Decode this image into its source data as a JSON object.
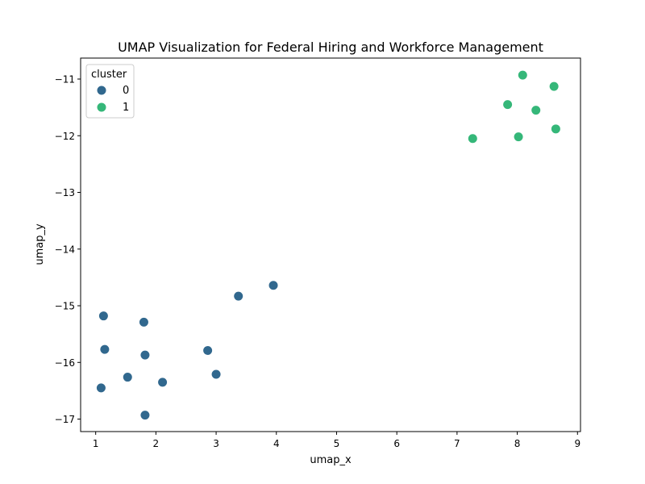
{
  "chart_data": {
    "type": "scatter",
    "title": "UMAP Visualization for Federal Hiring and Workforce Management",
    "xlabel": "umap_x",
    "ylabel": "umap_y",
    "xlim": [
      0.75,
      9.05
    ],
    "ylim": [
      -17.22,
      -10.63
    ],
    "xticks": [
      1,
      2,
      3,
      4,
      5,
      6,
      7,
      8,
      9
    ],
    "yticks": [
      -17,
      -16,
      -15,
      -14,
      -13,
      -12,
      -11
    ],
    "xtick_labels": [
      "1",
      "2",
      "3",
      "4",
      "5",
      "6",
      "7",
      "8",
      "9"
    ],
    "ytick_labels": [
      "−17",
      "−16",
      "−15",
      "−14",
      "−13",
      "−12",
      "−11"
    ],
    "grid": false,
    "legend": {
      "title": "cluster",
      "placement": "top-left",
      "entries": [
        "0",
        "1"
      ]
    },
    "colors": {
      "0": "#31688e",
      "1": "#35b779"
    },
    "series": [
      {
        "name": "0",
        "points": [
          {
            "x": 1.13,
            "y": -15.18
          },
          {
            "x": 1.8,
            "y": -15.29
          },
          {
            "x": 1.15,
            "y": -15.77
          },
          {
            "x": 1.82,
            "y": -15.87
          },
          {
            "x": 1.53,
            "y": -16.26
          },
          {
            "x": 1.09,
            "y": -16.45
          },
          {
            "x": 2.11,
            "y": -16.35
          },
          {
            "x": 1.82,
            "y": -16.93
          },
          {
            "x": 2.86,
            "y": -15.79
          },
          {
            "x": 3.0,
            "y": -16.21
          },
          {
            "x": 3.37,
            "y": -14.83
          },
          {
            "x": 3.95,
            "y": -14.64
          }
        ]
      },
      {
        "name": "1",
        "points": [
          {
            "x": 7.26,
            "y": -12.05
          },
          {
            "x": 7.84,
            "y": -11.45
          },
          {
            "x": 8.09,
            "y": -10.93
          },
          {
            "x": 8.31,
            "y": -11.55
          },
          {
            "x": 8.02,
            "y": -12.02
          },
          {
            "x": 8.61,
            "y": -11.13
          },
          {
            "x": 8.64,
            "y": -11.88
          }
        ]
      }
    ]
  }
}
